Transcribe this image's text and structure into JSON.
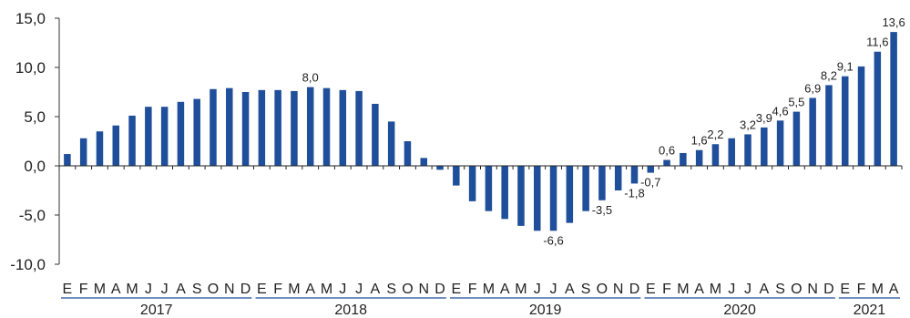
{
  "chart_data": {
    "type": "bar",
    "title": "",
    "xlabel": "",
    "ylabel": "",
    "ylim": [
      -10,
      15
    ],
    "yticks": [
      "15,0",
      "10,0",
      "5,0",
      "0,0",
      "-5,0",
      "-10,0"
    ],
    "ytick_values": [
      15,
      10,
      5,
      0,
      -5,
      -10
    ],
    "bar_color": "#1f4e9a",
    "grid": false,
    "months": [
      "E",
      "F",
      "M",
      "A",
      "M",
      "J",
      "J",
      "A",
      "S",
      "O",
      "N",
      "D",
      "E",
      "F",
      "M",
      "A",
      "M",
      "J",
      "J",
      "A",
      "S",
      "O",
      "N",
      "D",
      "E",
      "F",
      "M",
      "A",
      "M",
      "J",
      "J",
      "A",
      "S",
      "O",
      "N",
      "D",
      "E",
      "F",
      "M",
      "A",
      "M",
      "J",
      "J",
      "A",
      "S",
      "O",
      "N",
      "D",
      "E",
      "F",
      "M",
      "A"
    ],
    "years": [
      {
        "label": "2017",
        "count": 12
      },
      {
        "label": "2018",
        "count": 12
      },
      {
        "label": "2019",
        "count": 12
      },
      {
        "label": "2020",
        "count": 12
      },
      {
        "label": "2021",
        "count": 4
      }
    ],
    "values": [
      1.2,
      2.8,
      3.5,
      4.1,
      5.1,
      6.0,
      6.0,
      6.5,
      6.8,
      7.8,
      7.9,
      7.5,
      7.7,
      7.7,
      7.6,
      8.0,
      7.9,
      7.7,
      7.6,
      6.3,
      4.5,
      2.5,
      0.8,
      -0.4,
      -2.0,
      -3.6,
      -4.6,
      -5.4,
      -6.1,
      -6.6,
      -6.6,
      -5.8,
      -4.6,
      -3.5,
      -2.5,
      -1.8,
      -0.7,
      0.6,
      1.3,
      1.6,
      2.2,
      2.8,
      3.2,
      3.9,
      4.6,
      5.5,
      6.9,
      8.2,
      9.1,
      10.1,
      11.6,
      13.6
    ],
    "data_labels": [
      {
        "index": 15,
        "text": "8,0"
      },
      {
        "index": 30,
        "text": "-6,6"
      },
      {
        "index": 33,
        "text": "-3,5"
      },
      {
        "index": 35,
        "text": "-1,8"
      },
      {
        "index": 36,
        "text": "-0,7"
      },
      {
        "index": 37,
        "text": "0,6"
      },
      {
        "index": 39,
        "text": "1,6"
      },
      {
        "index": 40,
        "text": "2,2"
      },
      {
        "index": 42,
        "text": "3,2"
      },
      {
        "index": 43,
        "text": "3,9"
      },
      {
        "index": 44,
        "text": "4,6"
      },
      {
        "index": 45,
        "text": "5,5"
      },
      {
        "index": 46,
        "text": "6,9"
      },
      {
        "index": 47,
        "text": "8,2"
      },
      {
        "index": 48,
        "text": "9,1"
      },
      {
        "index": 50,
        "text": "11,6"
      },
      {
        "index": 51,
        "text": "13,6"
      }
    ]
  }
}
